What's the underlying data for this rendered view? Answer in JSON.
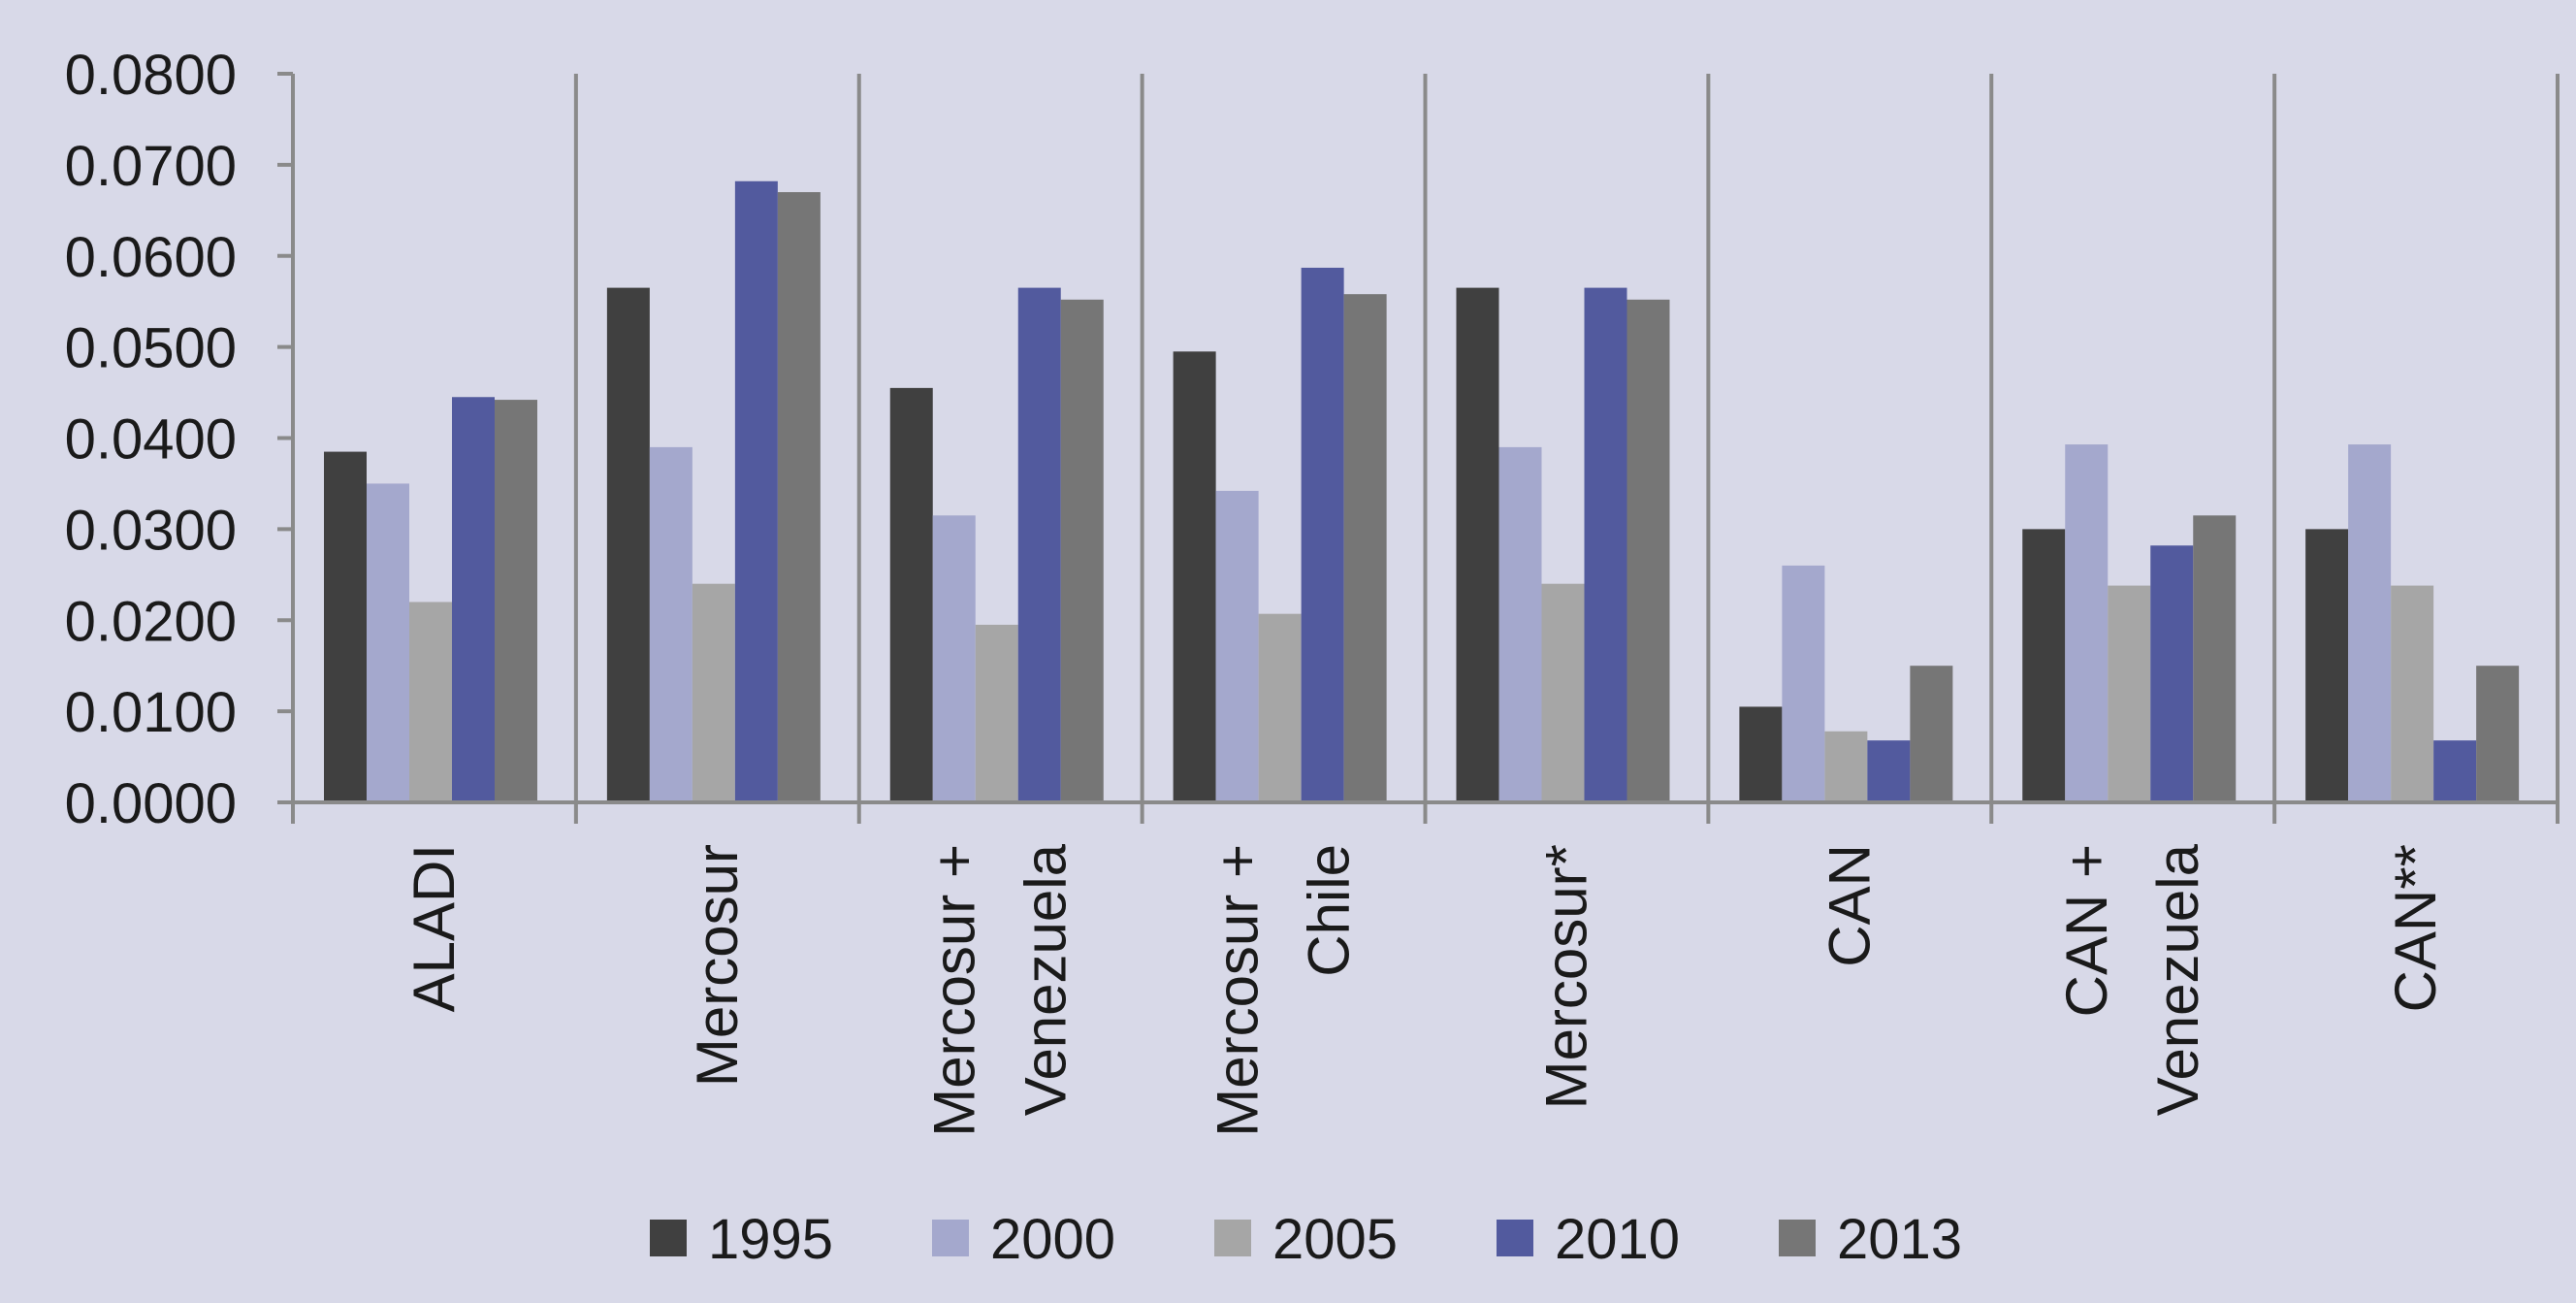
{
  "chart_data": {
    "type": "bar",
    "title": "",
    "xlabel": "",
    "ylabel": "",
    "ylim": [
      0,
      0.08
    ],
    "yticks": [
      "0.0000",
      "0.0100",
      "0.0200",
      "0.0300",
      "0.0400",
      "0.0500",
      "0.0600",
      "0.0700",
      "0.0800"
    ],
    "categories": [
      [
        "ALADI"
      ],
      [
        "Mercosur"
      ],
      [
        "Mercosur +",
        "Venezuela"
      ],
      [
        "Mercosur +",
        "Chile"
      ],
      [
        "Mercosur*"
      ],
      [
        "CAN"
      ],
      [
        "CAN +",
        "Venezuela"
      ],
      [
        "CAN**"
      ]
    ],
    "series": [
      {
        "name": "1995",
        "color": "#404040",
        "values": [
          0.0385,
          0.0565,
          0.0455,
          0.0495,
          0.0565,
          0.0105,
          0.03,
          0.03
        ]
      },
      {
        "name": "2000",
        "color": "#a4a8cd",
        "values": [
          0.035,
          0.039,
          0.0315,
          0.0342,
          0.039,
          0.026,
          0.0393,
          0.0393
        ]
      },
      {
        "name": "2005",
        "color": "#a6a6a6",
        "values": [
          0.022,
          0.024,
          0.0195,
          0.0207,
          0.024,
          0.0078,
          0.0238,
          0.0238
        ]
      },
      {
        "name": "2010",
        "color": "#525a9e",
        "values": [
          0.0445,
          0.0682,
          0.0565,
          0.0587,
          0.0565,
          0.0068,
          0.0282,
          0.0068
        ]
      },
      {
        "name": "2013",
        "color": "#767676",
        "values": [
          0.0442,
          0.067,
          0.0552,
          0.0558,
          0.0552,
          0.015,
          0.0315,
          0.015
        ]
      }
    ],
    "grid": false,
    "legend_position": "bottom"
  }
}
